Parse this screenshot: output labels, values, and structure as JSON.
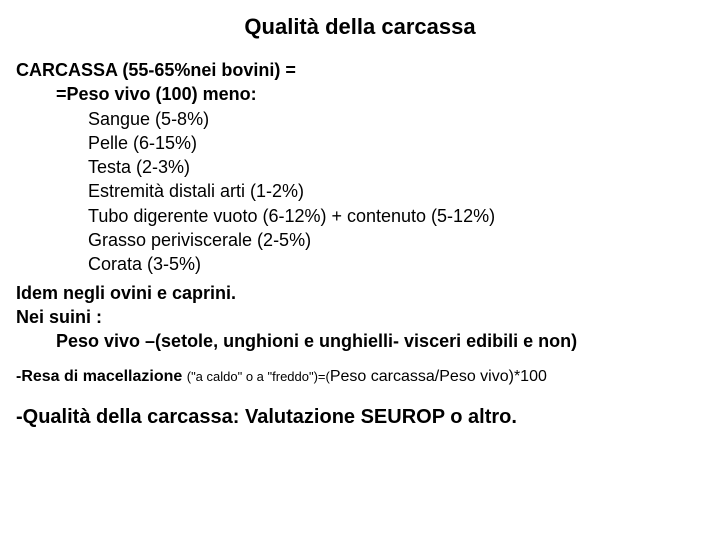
{
  "title": "Qualità della carcassa",
  "heading1": "CARCASSA (55-65%nei bovini) =",
  "subheading": "=Peso vivo (100) meno:",
  "items": [
    "Sangue (5-8%)",
    "Pelle (6-15%)",
    "Testa (2-3%)",
    "Estremità distali arti (1-2%)",
    "Tubo digerente vuoto (6-12%) + contenuto (5-12%)",
    "Grasso periviscerale (2-5%)",
    "Corata (3-5%)"
  ],
  "idem": "Idem negli ovini e caprini.",
  "suini1": "Nei suini :",
  "suini2": "Peso vivo –(setole, unghioni e unghielli- visceri edibili e non)",
  "resa_prefix": "-Resa di macellazione ",
  "resa_small": "(\"a caldo\" o a \"freddo\")=(",
  "resa_mid": "Peso carcassa/Peso vivo)*100",
  "quality": "-Qualità della carcassa: Valutazione SEUROP o altro.",
  "colors": {
    "background": "#ffffff",
    "text": "#000000"
  },
  "fonts": {
    "family": "Arial",
    "title_size_pt": 17,
    "body_size_pt": 14,
    "small_size_pt": 10
  }
}
